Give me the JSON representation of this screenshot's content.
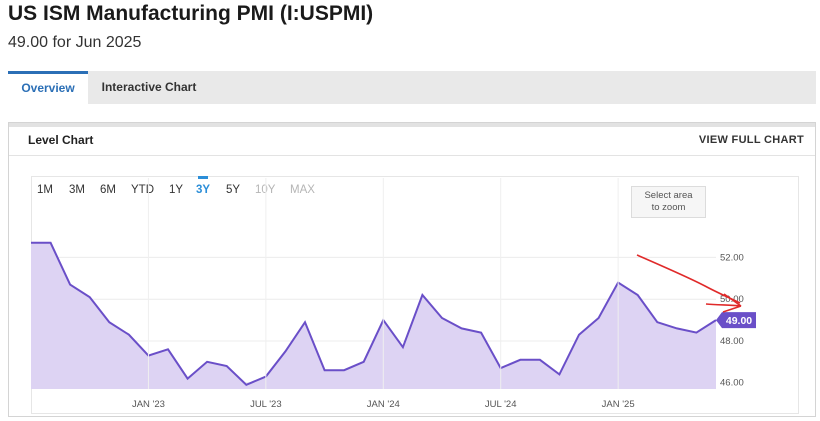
{
  "header": {
    "title": "US ISM Manufacturing PMI (I:USPMI)",
    "subtitle": "49.00 for Jun 2025"
  },
  "tabs": [
    {
      "label": "Overview",
      "active": true
    },
    {
      "label": "Interactive Chart",
      "active": false
    }
  ],
  "card": {
    "title": "Level Chart",
    "full_chart_label": "VIEW FULL CHART"
  },
  "ranges": [
    {
      "label": "1M",
      "state": "normal"
    },
    {
      "label": "3M",
      "state": "normal"
    },
    {
      "label": "6M",
      "state": "normal"
    },
    {
      "label": "YTD",
      "state": "normal"
    },
    {
      "label": "1Y",
      "state": "normal"
    },
    {
      "label": "3Y",
      "state": "active"
    },
    {
      "label": "5Y",
      "state": "normal"
    },
    {
      "label": "10Y",
      "state": "disabled"
    },
    {
      "label": "MAX",
      "state": "disabled"
    }
  ],
  "zoom_hint": {
    "line1": "Select area",
    "line2": "to zoom"
  },
  "colors": {
    "accent": "#2b8ed8",
    "series_line": "#6a4fc8",
    "series_fill": "#ddd3f3",
    "annotation": "#e02a2a"
  },
  "chart_data": {
    "type": "area",
    "x": [
      "2022-07",
      "2022-08",
      "2022-09",
      "2022-10",
      "2022-11",
      "2022-12",
      "2023-01",
      "2023-02",
      "2023-03",
      "2023-04",
      "2023-05",
      "2023-06",
      "2023-07",
      "2023-08",
      "2023-09",
      "2023-10",
      "2023-11",
      "2023-12",
      "2024-01",
      "2024-02",
      "2024-03",
      "2024-04",
      "2024-05",
      "2024-06",
      "2024-07",
      "2024-08",
      "2024-09",
      "2024-10",
      "2024-11",
      "2024-12",
      "2025-01",
      "2025-02",
      "2025-03",
      "2025-04",
      "2025-05",
      "2025-06"
    ],
    "series": [
      {
        "values": [
          52.7,
          52.7,
          50.7,
          50.1,
          48.9,
          48.3,
          47.3,
          47.6,
          46.2,
          47.0,
          46.8,
          45.9,
          46.3,
          47.5,
          48.9,
          46.6,
          46.6,
          47.0,
          49.0,
          47.7,
          50.2,
          49.1,
          48.6,
          48.4,
          46.7,
          47.1,
          47.1,
          46.4,
          48.3,
          49.1,
          50.8,
          50.2,
          48.9,
          48.6,
          48.4,
          49.0
        ]
      }
    ],
    "x_tick_labels": [
      "JAN '23",
      "JUL '23",
      "JAN '24",
      "JUL '24",
      "JAN '25"
    ],
    "x_tick_values": [
      "2023-01",
      "2023-07",
      "2024-01",
      "2024-07",
      "2025-01"
    ],
    "y_tick_labels": [
      "46.00",
      "48.00",
      "50.00",
      "52.00"
    ],
    "y_ticks": [
      46,
      48,
      50,
      52
    ],
    "ylim": [
      45.7,
      53.6
    ],
    "last_value_label": "49.00",
    "grid": true,
    "title": "Level Chart",
    "xlabel": "",
    "ylabel": ""
  }
}
